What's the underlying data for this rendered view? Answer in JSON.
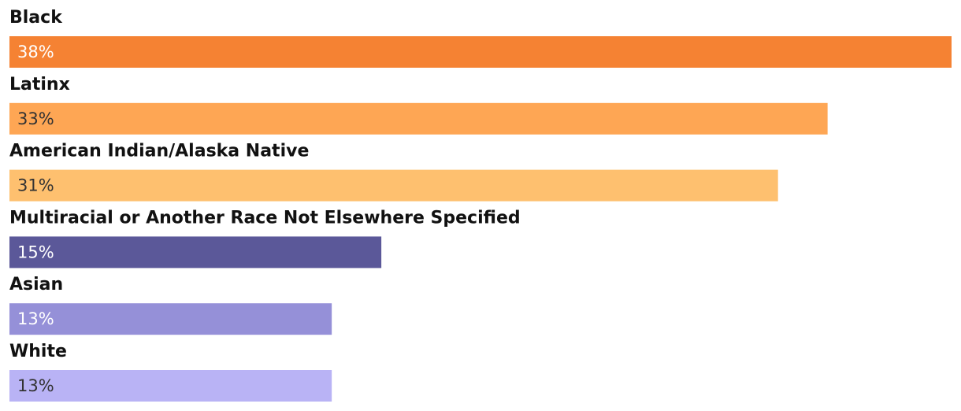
{
  "chart_data": {
    "type": "bar",
    "orientation": "horizontal",
    "categories": [
      "Black",
      "Latinx",
      "American Indian/Alaska Native",
      "Multiracial or Another Race Not Elsewhere Specified",
      "Asian",
      "White"
    ],
    "values": [
      38,
      33,
      31,
      15,
      13,
      13
    ],
    "value_labels": [
      "38%",
      "33%",
      "31%",
      "15%",
      "13%",
      "13%"
    ],
    "colors": [
      "#f58233",
      "#fea654",
      "#fec06f",
      "#5b5899",
      "#9590d8",
      "#b9b3f5"
    ]
  }
}
